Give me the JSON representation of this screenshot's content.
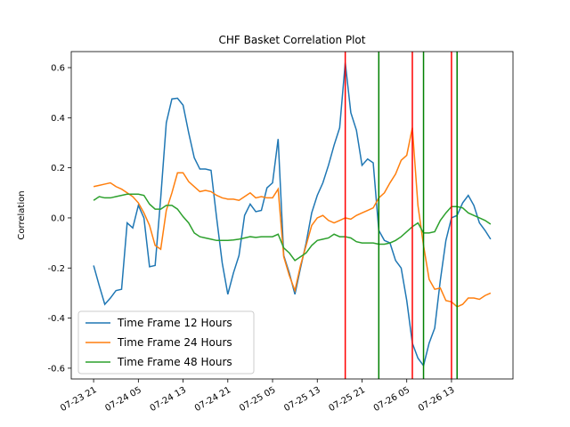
{
  "chart_data": {
    "type": "line",
    "title": "CHF Basket Correlation Plot",
    "ylabel": "Correlation",
    "x": [
      "07-23 21",
      "07-23 22",
      "07-23 23",
      "07-24 00",
      "07-24 01",
      "07-24 02",
      "07-24 03",
      "07-24 04",
      "07-24 05",
      "07-24 06",
      "07-24 07",
      "07-24 08",
      "07-24 09",
      "07-24 10",
      "07-24 11",
      "07-24 12",
      "07-24 13",
      "07-24 14",
      "07-24 15",
      "07-24 16",
      "07-24 17",
      "07-24 18",
      "07-24 19",
      "07-24 20",
      "07-24 21",
      "07-24 22",
      "07-24 23",
      "07-25 00",
      "07-25 01",
      "07-25 02",
      "07-25 03",
      "07-25 04",
      "07-25 05",
      "07-25 06",
      "07-25 07",
      "07-25 08",
      "07-25 09",
      "07-25 10",
      "07-25 11",
      "07-25 12",
      "07-25 13",
      "07-25 14",
      "07-25 15",
      "07-25 16",
      "07-25 17",
      "07-25 18",
      "07-25 19",
      "07-25 20",
      "07-25 21",
      "07-25 22",
      "07-25 23",
      "07-26 00",
      "07-26 01",
      "07-26 02",
      "07-26 03",
      "07-26 04",
      "07-26 05",
      "07-26 06",
      "07-26 07",
      "07-26 08",
      "07-26 09",
      "07-26 10",
      "07-26 11",
      "07-26 12",
      "07-26 13",
      "07-26 14",
      "07-26 15",
      "07-26 16",
      "07-26 17",
      "07-26 18",
      "07-26 19",
      "07-26 20"
    ],
    "series": [
      {
        "name": "Time Frame 12 Hours",
        "color": "#1f77b4",
        "values": [
          -0.19,
          -0.27,
          -0.345,
          -0.32,
          -0.29,
          -0.285,
          -0.02,
          -0.04,
          0.05,
          0.0,
          -0.195,
          -0.19,
          0.08,
          0.38,
          0.475,
          0.478,
          0.45,
          0.34,
          0.24,
          0.195,
          0.195,
          0.19,
          0.0,
          -0.18,
          -0.305,
          -0.22,
          -0.15,
          0.01,
          0.055,
          0.025,
          0.03,
          0.12,
          0.14,
          0.315,
          -0.15,
          -0.22,
          -0.305,
          -0.2,
          -0.1,
          0.02,
          0.09,
          0.14,
          0.21,
          0.29,
          0.36,
          0.62,
          0.42,
          0.35,
          0.21,
          0.235,
          0.22,
          -0.05,
          -0.09,
          -0.1,
          -0.17,
          -0.2,
          -0.33,
          -0.5,
          -0.56,
          -0.59,
          -0.5,
          -0.44,
          -0.25,
          -0.09,
          0.0,
          0.01,
          0.06,
          0.09,
          0.05,
          -0.02,
          -0.05,
          -0.085
        ]
      },
      {
        "name": "Time Frame 24 Hours",
        "color": "#ff7f0e",
        "values": [
          0.125,
          0.13,
          0.135,
          0.14,
          0.125,
          0.115,
          0.1,
          0.085,
          0.06,
          0.02,
          -0.03,
          -0.11,
          -0.125,
          0.03,
          0.1,
          0.18,
          0.18,
          0.145,
          0.125,
          0.105,
          0.11,
          0.105,
          0.09,
          0.08,
          0.075,
          0.075,
          0.07,
          0.085,
          0.1,
          0.08,
          0.085,
          0.08,
          0.08,
          0.115,
          -0.155,
          -0.23,
          -0.29,
          -0.19,
          -0.11,
          -0.03,
          0.0,
          0.01,
          -0.01,
          -0.02,
          -0.01,
          0.0,
          -0.005,
          0.01,
          0.02,
          0.03,
          0.04,
          0.08,
          0.1,
          0.14,
          0.175,
          0.23,
          0.25,
          0.36,
          0.05,
          -0.11,
          -0.245,
          -0.285,
          -0.28,
          -0.33,
          -0.335,
          -0.355,
          -0.345,
          -0.32,
          -0.32,
          -0.325,
          -0.31,
          -0.3
        ]
      },
      {
        "name": "Time Frame 48 Hours",
        "color": "#2ca02c",
        "values": [
          0.07,
          0.085,
          0.08,
          0.08,
          0.085,
          0.09,
          0.095,
          0.095,
          0.095,
          0.09,
          0.055,
          0.035,
          0.035,
          0.05,
          0.05,
          0.035,
          0.005,
          -0.02,
          -0.06,
          -0.075,
          -0.08,
          -0.085,
          -0.09,
          -0.09,
          -0.09,
          -0.088,
          -0.085,
          -0.08,
          -0.075,
          -0.078,
          -0.075,
          -0.075,
          -0.075,
          -0.065,
          -0.12,
          -0.14,
          -0.17,
          -0.155,
          -0.14,
          -0.11,
          -0.09,
          -0.085,
          -0.08,
          -0.065,
          -0.075,
          -0.075,
          -0.08,
          -0.095,
          -0.1,
          -0.1,
          -0.1,
          -0.105,
          -0.105,
          -0.1,
          -0.09,
          -0.075,
          -0.055,
          -0.035,
          -0.02,
          -0.06,
          -0.06,
          -0.055,
          -0.01,
          0.02,
          0.045,
          0.045,
          0.04,
          0.02,
          0.01,
          0.0,
          -0.01,
          -0.025
        ]
      }
    ],
    "vlines": [
      {
        "x": "07-25 18",
        "color": "red"
      },
      {
        "x": "07-26 06",
        "color": "red"
      },
      {
        "x": "07-26 13",
        "color": "red"
      },
      {
        "x": "07-26 00",
        "color": "green"
      },
      {
        "x": "07-26 08",
        "color": "green"
      },
      {
        "x": "07-26 14",
        "color": "green"
      }
    ],
    "xlim": [
      "07-23 17",
      "07-27 00"
    ],
    "xticks": [
      "07-23 21",
      "07-24 05",
      "07-24 13",
      "07-24 21",
      "07-25 05",
      "07-25 13",
      "07-25 21",
      "07-26 05",
      "07-26 13"
    ],
    "ylim": [
      -0.643,
      0.664
    ],
    "yticks": [
      -0.6,
      -0.4,
      -0.2,
      {
        "value": 0,
        "label": "0.0"
      },
      0.2,
      0.4,
      0.6
    ],
    "legend": "lower left"
  }
}
